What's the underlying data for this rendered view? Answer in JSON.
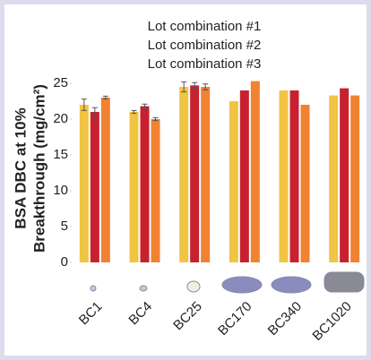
{
  "chart_data": {
    "type": "bar",
    "ylabel": [
      "BSA DBC at 10%",
      "Breakthrough (mg/cm²)"
    ],
    "categories": [
      "BC1",
      "BC4",
      "BC25",
      "BC170",
      "BC340",
      "BC1020"
    ],
    "series": [
      {
        "name": "Lot combination #1",
        "color": "#f2c443",
        "values": [
          22,
          21,
          24.5,
          22.5,
          24,
          23.3
        ],
        "errors": [
          0.8,
          0.2,
          0.7,
          null,
          null,
          null
        ]
      },
      {
        "name": "Lot combination #2",
        "color": "#c8202f",
        "values": [
          21,
          21.8,
          24.7,
          24,
          24,
          24.3
        ],
        "errors": [
          0.6,
          0.3,
          0.4,
          null,
          null,
          null
        ]
      },
      {
        "name": "Lot combination #3",
        "color": "#f08232",
        "values": [
          23,
          20,
          24.5,
          25.3,
          22,
          23.3
        ],
        "errors": [
          0.2,
          0.2,
          0.4,
          null,
          null,
          null
        ]
      }
    ],
    "ylim": [
      0,
      25
    ],
    "yticks": [
      0,
      5,
      10,
      15,
      20,
      25
    ],
    "legend": "top"
  }
}
